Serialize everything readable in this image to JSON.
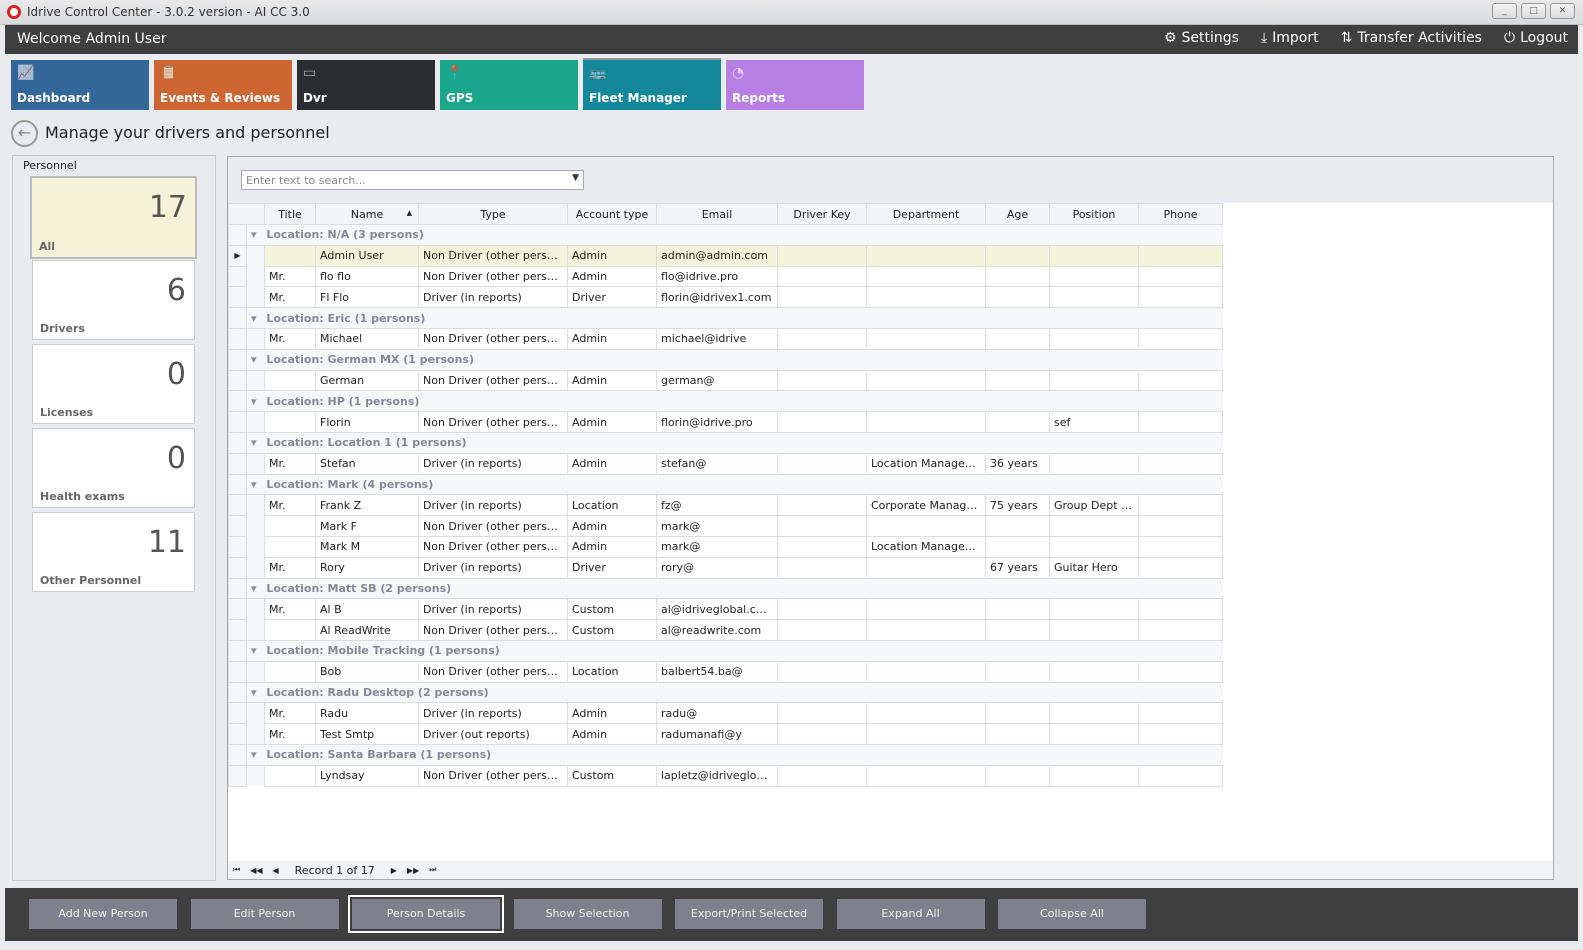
{
  "window": {
    "title": "Idrive Control Center - 3.0.2 version - AI CC 3.0",
    "minimize": "_",
    "maximize": "□",
    "close": "✕"
  },
  "header": {
    "welcome": "Welcome Admin User",
    "nav": [
      {
        "label": "Settings",
        "icon": "gears-icon"
      },
      {
        "label": "Import",
        "icon": "download-icon"
      },
      {
        "label": "Transfer Activities",
        "icon": "transfer-icon"
      },
      {
        "label": "Logout",
        "icon": "power-icon"
      }
    ]
  },
  "tiles": [
    {
      "label": "Dashboard",
      "color": "#336699",
      "icon": "chart-icon"
    },
    {
      "label": "Events & Reviews",
      "color": "#cd6633",
      "icon": "clipboard-icon"
    },
    {
      "label": "Dvr",
      "color": "#2b2d31",
      "icon": "dvr-icon"
    },
    {
      "label": "GPS",
      "color": "#1aa68a",
      "icon": "pin-icon"
    },
    {
      "label": "Fleet Manager",
      "color": "#12889a",
      "icon": "vehicles-icon",
      "selected": true
    },
    {
      "label": "Reports",
      "color": "#b77fe3",
      "icon": "pie-icon"
    }
  ],
  "page": {
    "title": "Manage your drivers and personnel"
  },
  "personnel": {
    "header": "Personnel",
    "cards": [
      {
        "label": "All",
        "count": "17",
        "selected": true
      },
      {
        "label": "Drivers",
        "count": "6"
      },
      {
        "label": "Licenses",
        "count": "0"
      },
      {
        "label": "Health exams",
        "count": "0"
      },
      {
        "label": "Other Personnel",
        "count": "11"
      }
    ]
  },
  "grid": {
    "search_placeholder": "Enter text to search...",
    "columns": [
      "Title",
      "Name",
      "Type",
      "Account type",
      "Email",
      "Driver Key",
      "Department",
      "Age",
      "Position",
      "Phone"
    ],
    "sort": {
      "column": "Name",
      "direction": "asc"
    },
    "groups": [
      {
        "label": "Location: N/A (3 persons)",
        "rows": [
          [
            "",
            "Admin User",
            "Non Driver (other personnel)",
            "Admin",
            "admin@admin.com",
            "",
            "",
            "",
            "",
            ""
          ],
          [
            "Mr.",
            "flo flo",
            "Non Driver (other personnel)",
            "Admin",
            "flo@idrive.pro",
            "",
            "",
            "",
            "",
            ""
          ],
          [
            "Mr.",
            "Fl Flo",
            "Driver (in reports)",
            "Driver",
            "florin@idrivex1.com",
            "",
            "",
            "",
            "",
            ""
          ]
        ]
      },
      {
        "label": "Location: Eric (1 persons)",
        "rows": [
          [
            "Mr.",
            "Michael",
            "Non Driver (other personnel)",
            "Admin",
            "michael@idrive",
            "",
            "",
            "",
            "",
            ""
          ]
        ]
      },
      {
        "label": "Location: German MX (1 persons)",
        "rows": [
          [
            "",
            "German",
            "Non Driver (other personnel)",
            "Admin",
            "german@",
            "",
            "",
            "",
            "",
            ""
          ]
        ]
      },
      {
        "label": "Location: HP (1 persons)",
        "rows": [
          [
            "",
            "Florin",
            "Non Driver (other personnel)",
            "Admin",
            "florin@idrive.pro",
            "",
            "",
            "",
            "sef",
            ""
          ]
        ]
      },
      {
        "label": "Location: Location 1 (1 persons)",
        "rows": [
          [
            "Mr.",
            "Stefan",
            "Driver (in reports)",
            "Admin",
            "stefan@",
            "",
            "Location Management",
            "36 years",
            "",
            ""
          ]
        ]
      },
      {
        "label": "Location: Mark (4 persons)",
        "rows": [
          [
            "Mr.",
            "Frank Z",
            "Driver (in reports)",
            "Location",
            "fz@",
            "",
            "Corporate Managem...",
            "75 years",
            "Group Dept user",
            ""
          ],
          [
            "",
            "Mark F",
            "Non Driver (other personnel)",
            "Admin",
            "mark@",
            "",
            "",
            "",
            "",
            ""
          ],
          [
            "",
            "Mark M",
            "Non Driver (other personnel)",
            "Admin",
            "mark@",
            "",
            "Location Management",
            "",
            "",
            ""
          ],
          [
            "Mr.",
            "Rory",
            "Driver (in reports)",
            "Driver",
            "rory@",
            "",
            "",
            "67 years",
            "Guitar Hero",
            ""
          ]
        ]
      },
      {
        "label": "Location: Matt SB (2 persons)",
        "rows": [
          [
            "Mr.",
            "Al B",
            "Driver (in reports)",
            "Custom",
            "al@idriveglobal.com",
            "",
            "",
            "",
            "",
            ""
          ],
          [
            "",
            "Al ReadWrite",
            "Non Driver (other personnel)",
            "Custom",
            "al@readwrite.com",
            "",
            "",
            "",
            "",
            ""
          ]
        ]
      },
      {
        "label": "Location: Mobile Tracking (1 persons)",
        "rows": [
          [
            "",
            "Bob",
            "Non Driver (other personnel)",
            "Location",
            "balbert54.ba@",
            "",
            "",
            "",
            "",
            ""
          ]
        ]
      },
      {
        "label": "Location: Radu Desktop (2 persons)",
        "rows": [
          [
            "Mr.",
            "Radu",
            "Driver (in reports)",
            "Admin",
            "radu@",
            "",
            "",
            "",
            "",
            ""
          ],
          [
            "Mr.",
            "Test Smtp",
            "Driver (out reports)",
            "Admin",
            "radumanafi@y",
            "",
            "",
            "",
            "",
            ""
          ]
        ]
      },
      {
        "label": "Location: Santa Barbara (1 persons)",
        "rows": [
          [
            "",
            "Lyndsay",
            "Non Driver (other personnel)",
            "Custom",
            "lapletz@idriveglobal....",
            "",
            "",
            "",
            "",
            ""
          ]
        ]
      }
    ],
    "record": "Record 1 of 17"
  },
  "actions": [
    "Add New Person",
    "Edit Person",
    "Person Details",
    "Show Selection",
    "Export/Print Selected",
    "Expand All",
    "Collapse All"
  ]
}
